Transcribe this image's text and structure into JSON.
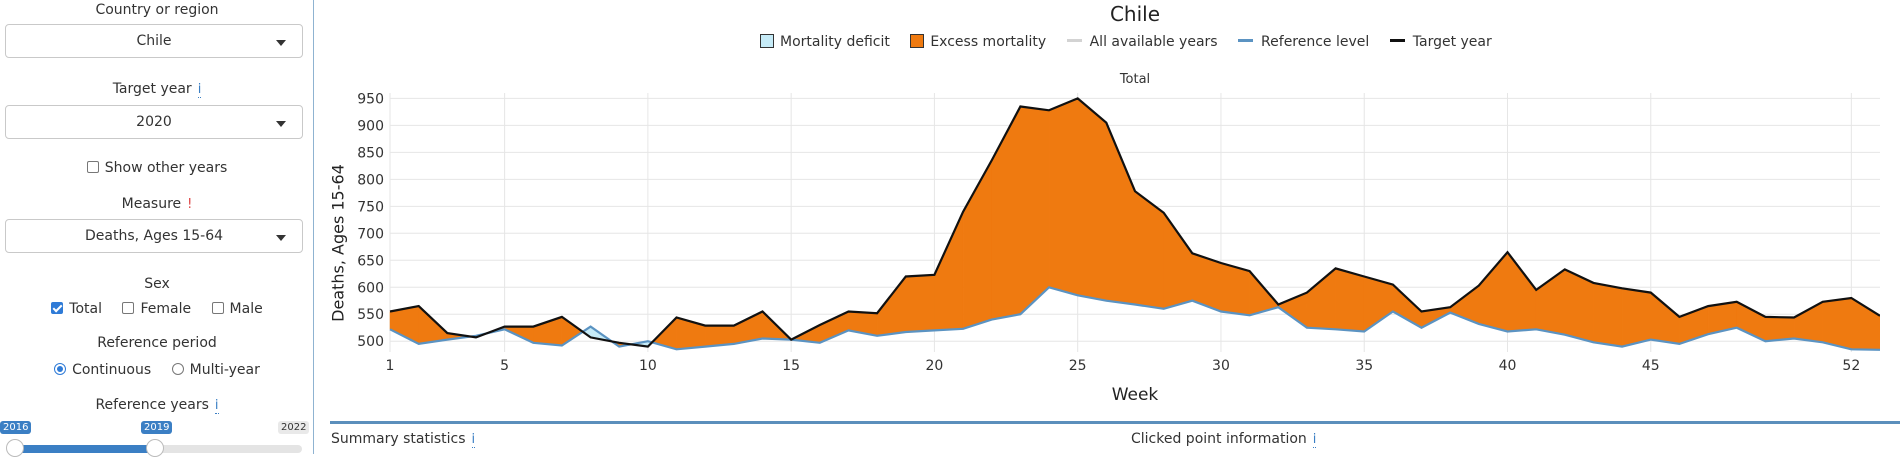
{
  "sidebar": {
    "country_label": "Country or region",
    "country_value": "Chile",
    "target_year_label": "Target year",
    "target_year_value": "2020",
    "show_other_years_label": "Show other years",
    "measure_label": "Measure",
    "measure_value": "Deaths, Ages 15-64",
    "sex_label": "Sex",
    "sex_options": [
      {
        "label": "Total",
        "checked": true
      },
      {
        "label": "Female",
        "checked": false
      },
      {
        "label": "Male",
        "checked": false
      }
    ],
    "reference_period_label": "Reference period",
    "reference_period_options": [
      {
        "label": "Continuous",
        "selected": true
      },
      {
        "label": "Multi-year",
        "selected": false
      }
    ],
    "reference_years_label": "Reference years",
    "slider": {
      "min": "2016",
      "selected": "2019",
      "max": "2022"
    },
    "info_glyph": "i",
    "warn_glyph": "!"
  },
  "chart_title": "Chile",
  "legend": [
    {
      "label": "Mortality deficit",
      "kind": "box",
      "color": "#c6ebf7"
    },
    {
      "label": "Excess mortality",
      "kind": "box",
      "color": "#ef7a10"
    },
    {
      "label": "All available years",
      "kind": "line",
      "color": "#d3d3d3"
    },
    {
      "label": "Reference level",
      "kind": "line",
      "color": "#5b93c2"
    },
    {
      "label": "Target year",
      "kind": "line",
      "color": "#111111"
    }
  ],
  "bottom": {
    "summary_label": "Summary statistics",
    "clicked_label": "Clicked point information"
  },
  "chart_data": {
    "type": "area",
    "facet": "Total",
    "xlabel": "Week",
    "ylabel": "Deaths, Ages 15-64",
    "xlim": [
      1,
      53
    ],
    "ylim": [
      480,
      960
    ],
    "xticks": [
      1,
      5,
      10,
      15,
      20,
      25,
      30,
      35,
      40,
      45,
      52
    ],
    "yticks": [
      500,
      550,
      600,
      650,
      700,
      750,
      800,
      850,
      900,
      950
    ],
    "series": [
      {
        "name": "Target year",
        "color": "#111111",
        "x": [
          1,
          2,
          3,
          4,
          5,
          6,
          7,
          8,
          9,
          10,
          11,
          12,
          13,
          14,
          15,
          16,
          17,
          18,
          19,
          20,
          21,
          22,
          23,
          24,
          25,
          26,
          27,
          28,
          29,
          30,
          31,
          32,
          33,
          34,
          35,
          36,
          37,
          38,
          39,
          40,
          41,
          42,
          43,
          44,
          45,
          46,
          47,
          48,
          49,
          50,
          51,
          52,
          53
        ],
        "values": [
          555,
          565,
          515,
          507,
          527,
          527,
          545,
          507,
          497,
          490,
          544,
          529,
          529,
          555,
          503,
          530,
          555,
          552,
          620,
          623,
          740,
          835,
          935,
          928,
          950,
          905,
          778,
          738,
          663,
          645,
          630,
          568,
          590,
          635,
          620,
          605,
          555,
          563,
          603,
          665,
          595,
          633,
          608,
          598,
          590,
          545,
          565,
          573,
          545,
          544,
          573,
          580,
          547
        ]
      },
      {
        "name": "Reference level",
        "color": "#5b93c2",
        "x": [
          1,
          2,
          3,
          4,
          5,
          6,
          7,
          8,
          9,
          10,
          11,
          12,
          13,
          14,
          15,
          16,
          17,
          18,
          19,
          20,
          21,
          22,
          23,
          24,
          25,
          26,
          27,
          28,
          29,
          30,
          31,
          32,
          33,
          34,
          35,
          36,
          37,
          38,
          39,
          40,
          41,
          42,
          43,
          44,
          45,
          46,
          47,
          48,
          49,
          50,
          51,
          52,
          53
        ],
        "values": [
          522,
          495,
          503,
          510,
          522,
          497,
          492,
          527,
          490,
          500,
          485,
          490,
          495,
          505,
          503,
          497,
          520,
          510,
          517,
          520,
          523,
          540,
          550,
          600,
          585,
          575,
          568,
          560,
          575,
          555,
          548,
          563,
          525,
          522,
          518,
          555,
          525,
          553,
          532,
          518,
          522,
          512,
          498,
          490,
          503,
          495,
          513,
          525,
          500,
          505,
          498,
          485,
          484
        ]
      }
    ],
    "fill_above": {
      "name": "Excess mortality",
      "color": "#ef7a10"
    },
    "fill_below": {
      "name": "Mortality deficit",
      "color": "#c6ebf7"
    },
    "grid": true
  }
}
